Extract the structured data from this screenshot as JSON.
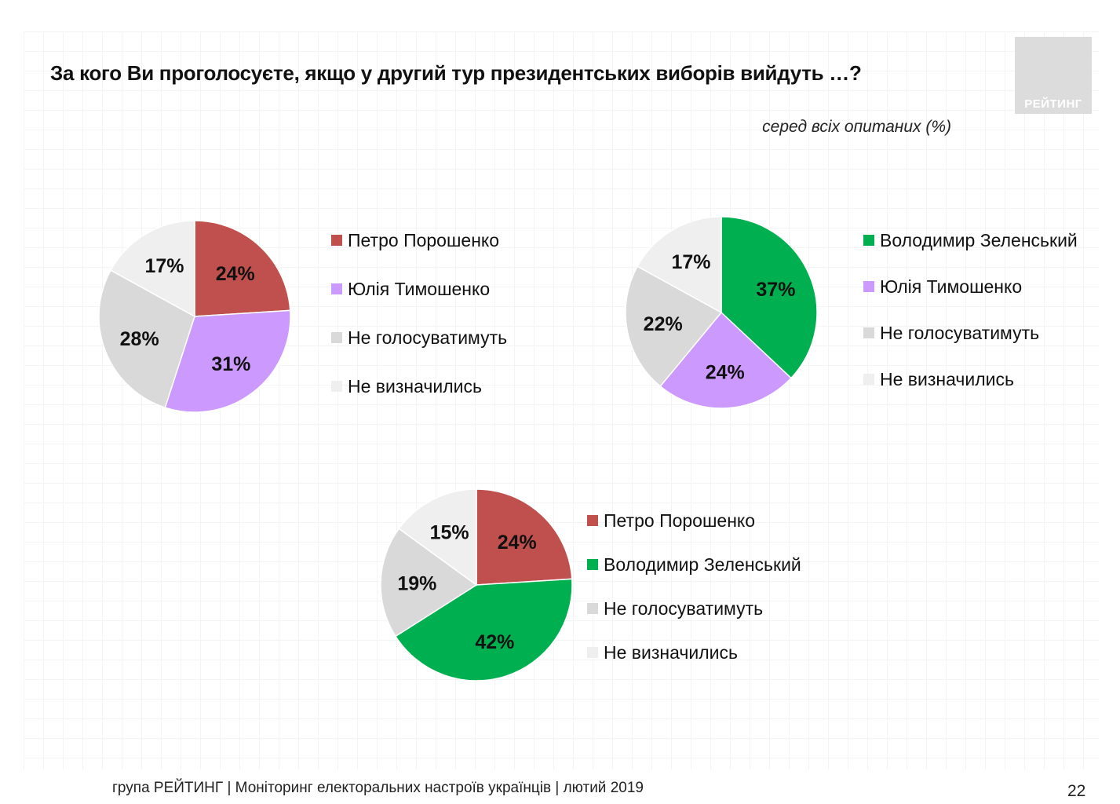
{
  "header": {
    "title": "За кого Ви проголосуєте, якщо у другий тур президентських виборів вийдуть …?",
    "subtitle": "серед всіх опитаних (%)",
    "logo_text": "РЕЙТИНГ"
  },
  "colors": {
    "poroshenko": "#c0504d",
    "tymoshenko": "#cc99ff",
    "zelensky": "#00b050",
    "not_vote": "#d9d9d9",
    "undecided": "#efefef"
  },
  "chart_data": [
    {
      "type": "pie",
      "slices": [
        {
          "label": "Петро Порошенко",
          "value": 24,
          "value_label": "24%",
          "color": "#c0504d"
        },
        {
          "label": "Юлія Тимошенко",
          "value": 31,
          "value_label": "31%",
          "color": "#cc99ff"
        },
        {
          "label": "Не голосуватимуть",
          "value": 28,
          "value_label": "28%",
          "color": "#d9d9d9"
        },
        {
          "label": "Не визначились",
          "value": 17,
          "value_label": "17%",
          "color": "#efefef"
        }
      ]
    },
    {
      "type": "pie",
      "slices": [
        {
          "label": "Володимир Зеленський",
          "value": 37,
          "value_label": "37%",
          "color": "#00b050"
        },
        {
          "label": "Юлія Тимошенко",
          "value": 24,
          "value_label": "24%",
          "color": "#cc99ff"
        },
        {
          "label": "Не голосуватимуть",
          "value": 22,
          "value_label": "22%",
          "color": "#d9d9d9"
        },
        {
          "label": "Не визначились",
          "value": 17,
          "value_label": "17%",
          "color": "#efefef"
        }
      ]
    },
    {
      "type": "pie",
      "slices": [
        {
          "label": "Петро Порошенко",
          "value": 24,
          "value_label": "24%",
          "color": "#c0504d"
        },
        {
          "label": "Володимир Зеленський",
          "value": 42,
          "value_label": "42%",
          "color": "#00b050"
        },
        {
          "label": "Не голосуватимуть",
          "value": 19,
          "value_label": "19%",
          "color": "#d9d9d9"
        },
        {
          "label": "Не визначились",
          "value": 15,
          "value_label": "15%",
          "color": "#efefef"
        }
      ]
    }
  ],
  "footer": {
    "text": "група РЕЙТИНГ |  Моніторинг електоральних настроїв українців | лютий  2019",
    "page_number": "22"
  }
}
